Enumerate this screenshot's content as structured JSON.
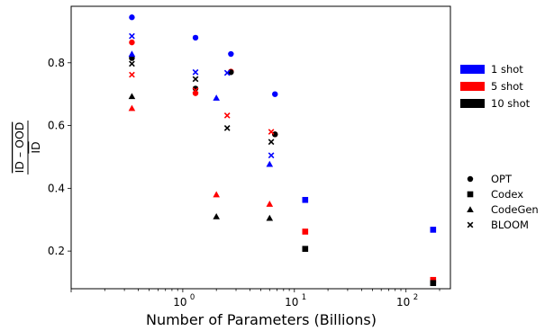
{
  "chart_data": {
    "type": "scatter",
    "title": "",
    "xlabel": "Number of Parameters (Billions)",
    "ylabel_numerator": "ID – OOD",
    "ylabel_denominator": "ID",
    "xscale": "log",
    "xlim": [
      0.1,
      250
    ],
    "ylim": [
      0.08,
      0.98
    ],
    "x_ticks": [
      {
        "value": 1,
        "label": "10",
        "exp": "0"
      },
      {
        "value": 10,
        "label": "10",
        "exp": "1"
      },
      {
        "value": 100,
        "label": "10",
        "exp": "2"
      }
    ],
    "y_ticks": [
      {
        "value": 0.2,
        "label": "0.2"
      },
      {
        "value": 0.4,
        "label": "0.4"
      },
      {
        "value": 0.6,
        "label": "0.6"
      },
      {
        "value": 0.8,
        "label": "0.8"
      }
    ],
    "grid": false,
    "shot_legend": {
      "placement": "right",
      "entries": [
        {
          "label": "1 shot",
          "color": "#0000ff"
        },
        {
          "label": "5 shot",
          "color": "#ff0000"
        },
        {
          "label": "10 shot",
          "color": "#000000"
        }
      ]
    },
    "model_legend": {
      "placement": "right",
      "entries": [
        {
          "label": "OPT",
          "marker": "circle"
        },
        {
          "label": "Codex",
          "marker": "square"
        },
        {
          "label": "CodeGen",
          "marker": "triangle"
        },
        {
          "label": "BLOOM",
          "marker": "x"
        }
      ]
    },
    "series": [
      {
        "model": "OPT",
        "shot": "1 shot",
        "color": "#0000ff",
        "marker": "circle",
        "points": [
          [
            0.35,
            0.945
          ],
          [
            1.3,
            0.88
          ],
          [
            2.7,
            0.828
          ],
          [
            6.7,
            0.7
          ]
        ]
      },
      {
        "model": "OPT",
        "shot": "5 shot",
        "color": "#ff0000",
        "marker": "circle",
        "points": [
          [
            0.35,
            0.865
          ],
          [
            1.3,
            0.703
          ],
          [
            2.7,
            0.772
          ],
          [
            6.7,
            0.572
          ]
        ]
      },
      {
        "model": "OPT",
        "shot": "10 shot",
        "color": "#000000",
        "marker": "circle",
        "points": [
          [
            0.35,
            0.815
          ],
          [
            1.3,
            0.718
          ],
          [
            2.7,
            0.77
          ],
          [
            6.7,
            0.572
          ]
        ]
      },
      {
        "model": "Codex",
        "shot": "1 shot",
        "color": "#0000ff",
        "marker": "square",
        "points": [
          [
            12.5,
            0.363
          ],
          [
            175,
            0.268
          ]
        ]
      },
      {
        "model": "Codex",
        "shot": "5 shot",
        "color": "#ff0000",
        "marker": "square",
        "points": [
          [
            12.5,
            0.262
          ],
          [
            175,
            0.108
          ]
        ]
      },
      {
        "model": "Codex",
        "shot": "10 shot",
        "color": "#000000",
        "marker": "square",
        "points": [
          [
            12.5,
            0.207
          ],
          [
            175,
            0.098
          ]
        ]
      },
      {
        "model": "CodeGen",
        "shot": "1 shot",
        "color": "#0000ff",
        "marker": "triangle",
        "points": [
          [
            0.35,
            0.828
          ],
          [
            2.0,
            0.688
          ],
          [
            6.0,
            0.477
          ]
        ]
      },
      {
        "model": "CodeGen",
        "shot": "5 shot",
        "color": "#ff0000",
        "marker": "triangle",
        "points": [
          [
            0.35,
            0.655
          ],
          [
            2.0,
            0.38
          ],
          [
            6.0,
            0.35
          ]
        ]
      },
      {
        "model": "CodeGen",
        "shot": "10 shot",
        "color": "#000000",
        "marker": "triangle",
        "points": [
          [
            0.35,
            0.693
          ],
          [
            2.0,
            0.31
          ],
          [
            6.0,
            0.305
          ]
        ]
      },
      {
        "model": "BLOOM",
        "shot": "1 shot",
        "color": "#0000ff",
        "marker": "x",
        "points": [
          [
            0.35,
            0.885
          ],
          [
            1.3,
            0.77
          ],
          [
            2.5,
            0.768
          ],
          [
            6.2,
            0.505
          ]
        ]
      },
      {
        "model": "BLOOM",
        "shot": "5 shot",
        "color": "#ff0000",
        "marker": "x",
        "points": [
          [
            0.35,
            0.762
          ],
          [
            1.3,
            0.712
          ],
          [
            2.5,
            0.632
          ],
          [
            6.2,
            0.58
          ]
        ]
      },
      {
        "model": "BLOOM",
        "shot": "10 shot",
        "color": "#000000",
        "marker": "x",
        "points": [
          [
            0.35,
            0.797
          ],
          [
            1.3,
            0.748
          ],
          [
            2.5,
            0.592
          ],
          [
            6.2,
            0.548
          ]
        ]
      }
    ]
  }
}
